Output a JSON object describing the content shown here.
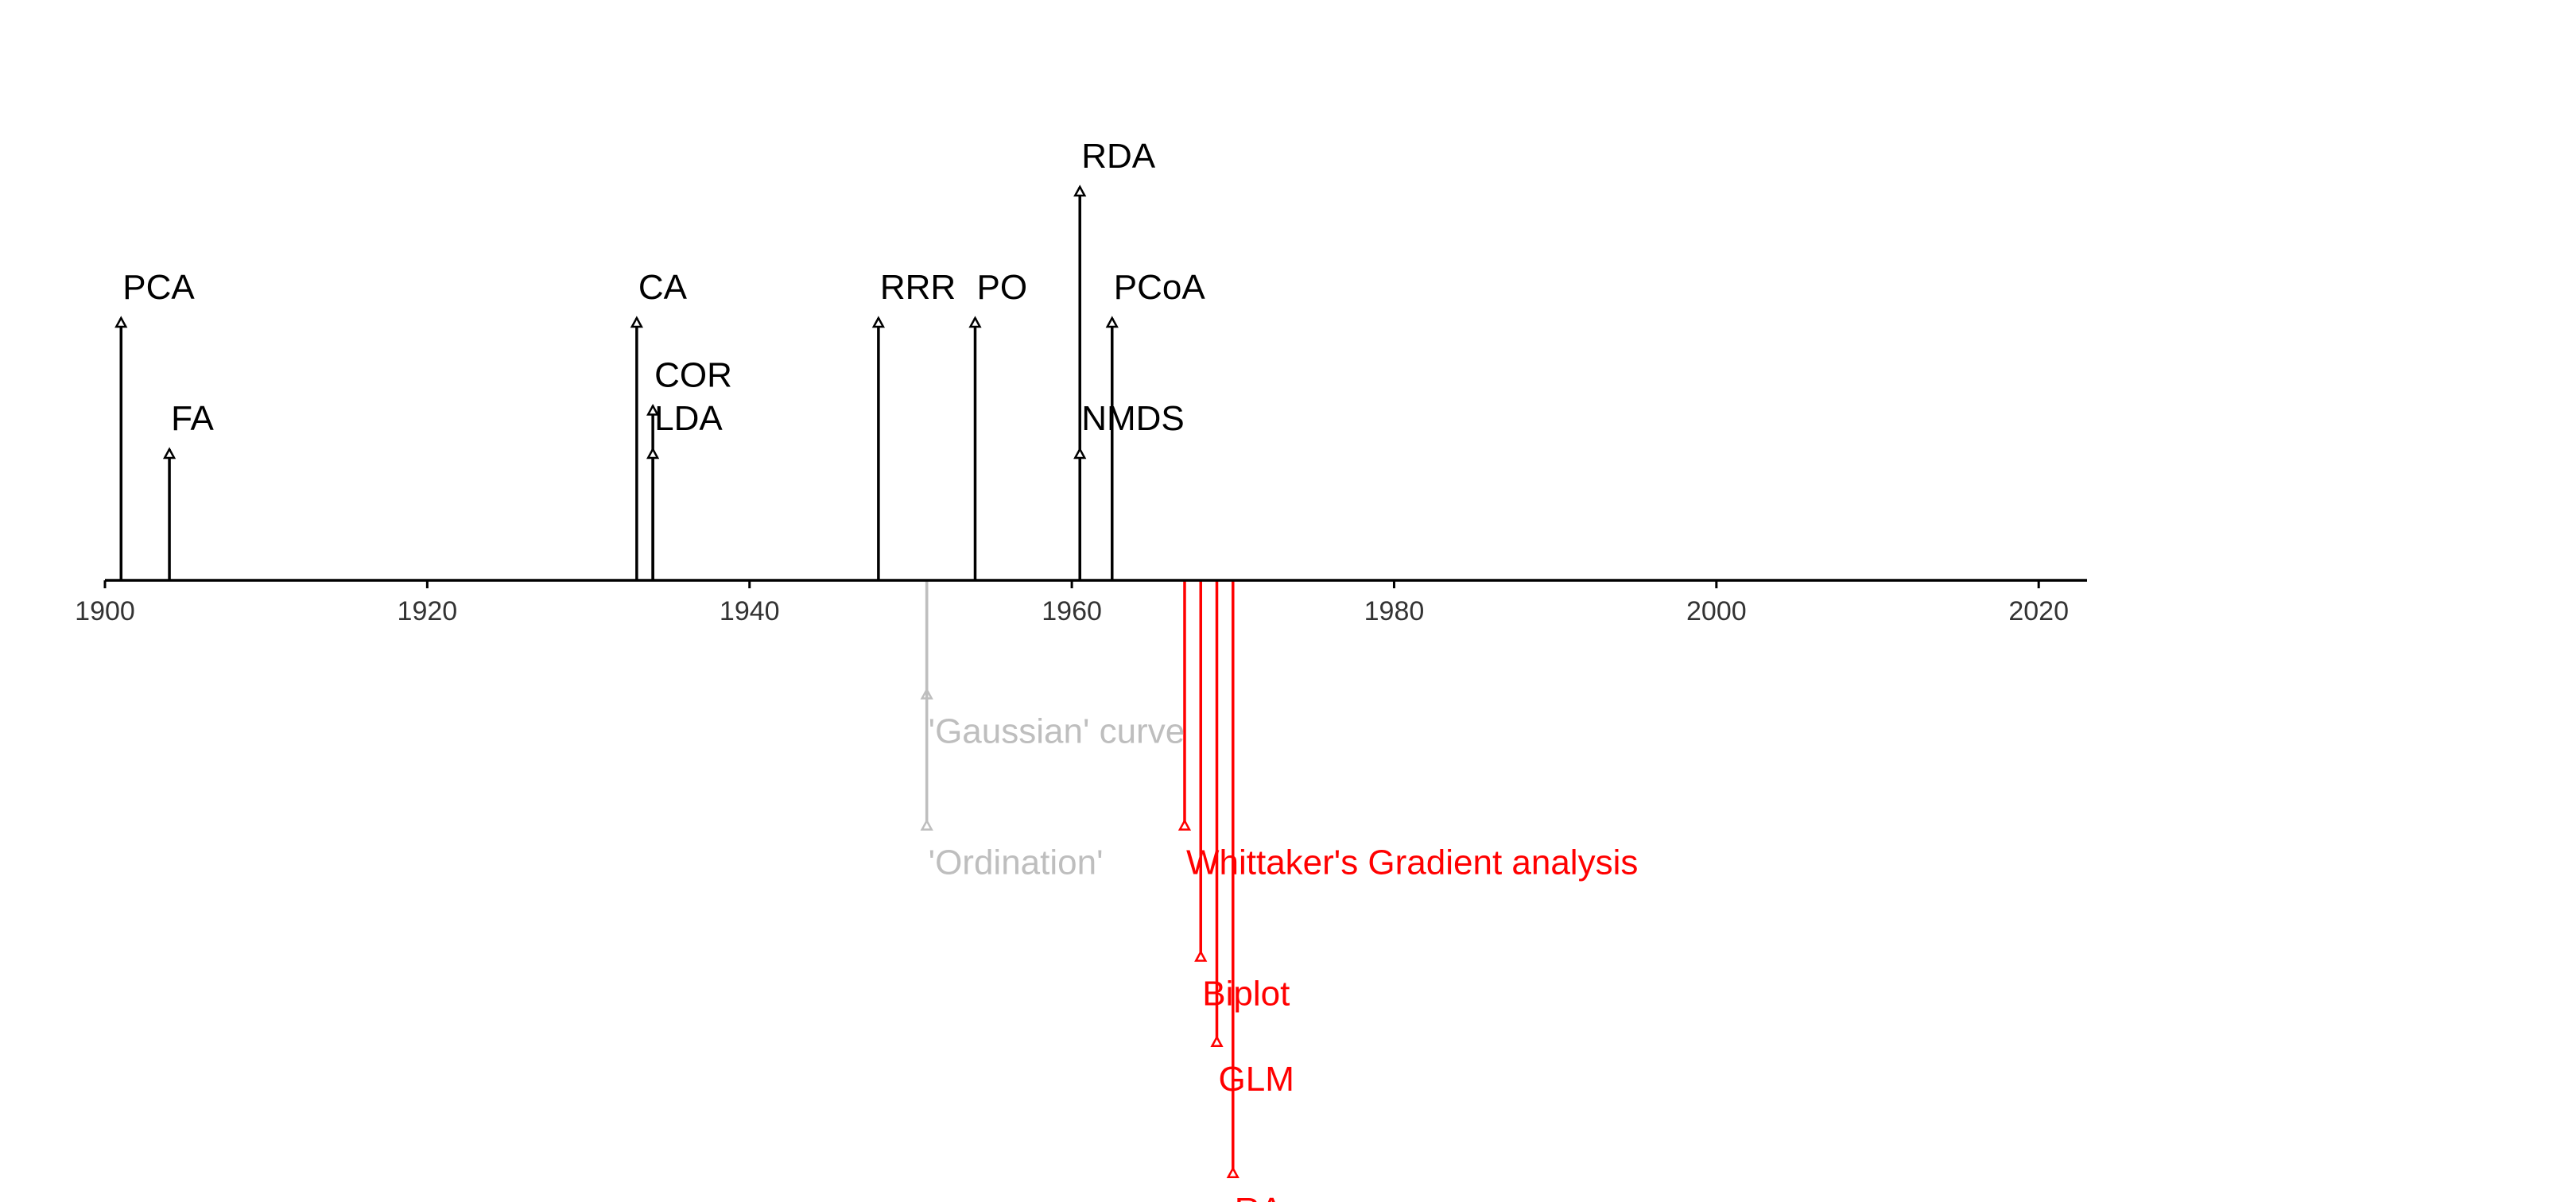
{
  "chart_data": {
    "type": "timeline",
    "title": "",
    "xlabel": "",
    "ylabel": "",
    "xlim": [
      1900,
      2023
    ],
    "x_ticks": [
      "1900",
      "1920",
      "1940",
      "1960",
      "1980",
      "2000",
      "2020"
    ],
    "grid": false,
    "series": [
      {
        "color": "#000000",
        "side": "above",
        "events": [
          {
            "label": "PCA",
            "year": 1901,
            "level": 2
          },
          {
            "label": "FA",
            "year": 1904,
            "level": 1
          },
          {
            "label": "CA",
            "year": 1933,
            "level": 2
          },
          {
            "label": "COR",
            "year": 1934,
            "level": 1.33
          },
          {
            "label": "LDA",
            "year": 1934,
            "level": 1
          },
          {
            "label": "RRR",
            "year": 1948,
            "level": 2
          },
          {
            "label": "PO",
            "year": 1954,
            "level": 2
          },
          {
            "label": "RDA",
            "year": 1960.5,
            "level": 3
          },
          {
            "label": "NMDS",
            "year": 1960.5,
            "level": 1
          },
          {
            "label": "PCoA",
            "year": 1962.5,
            "level": 2
          }
        ]
      },
      {
        "color": "#bebebe",
        "side": "below",
        "events": [
          {
            "label": "'Gaussian' curve",
            "year": 1951,
            "level": 0.9
          },
          {
            "label": "'Ordination'",
            "year": 1951,
            "level": 1.9
          }
        ]
      },
      {
        "color": "#ff0000",
        "side": "below",
        "events": [
          {
            "label": "Whittaker's Gradient analysis",
            "year": 1967,
            "level": 1.9
          },
          {
            "label": "Biplot",
            "year": 1968,
            "level": 2.9
          },
          {
            "label": "GLM",
            "year": 1969,
            "level": 3.55
          },
          {
            "label": "RA",
            "year": 1970,
            "level": 4.55
          }
        ]
      }
    ]
  }
}
